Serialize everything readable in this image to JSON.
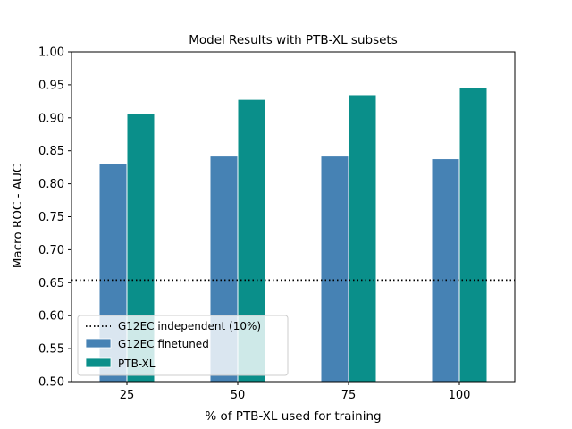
{
  "chart_data": {
    "type": "bar",
    "title": "Model Results with PTB-XL subsets",
    "xlabel": "% of PTB-XL used for training",
    "ylabel": "Macro ROC - AUC",
    "categories": [
      "25",
      "50",
      "75",
      "100"
    ],
    "series": [
      {
        "name": "G12EC finetuned",
        "color": "#4682b4",
        "values": [
          0.83,
          0.842,
          0.842,
          0.838
        ]
      },
      {
        "name": "PTB-XL",
        "color": "#0a8f8a",
        "values": [
          0.906,
          0.928,
          0.935,
          0.946
        ]
      }
    ],
    "reference_line": {
      "name": "G12EC independent (10%)",
      "value": 0.654,
      "style": "dotted",
      "color": "#000000"
    },
    "ylim": [
      0.5,
      1.0
    ],
    "yticks": [
      "0.50",
      "0.55",
      "0.60",
      "0.65",
      "0.70",
      "0.75",
      "0.80",
      "0.85",
      "0.90",
      "0.95",
      "1.00"
    ],
    "grid": false,
    "legend_position": "lower-left"
  }
}
